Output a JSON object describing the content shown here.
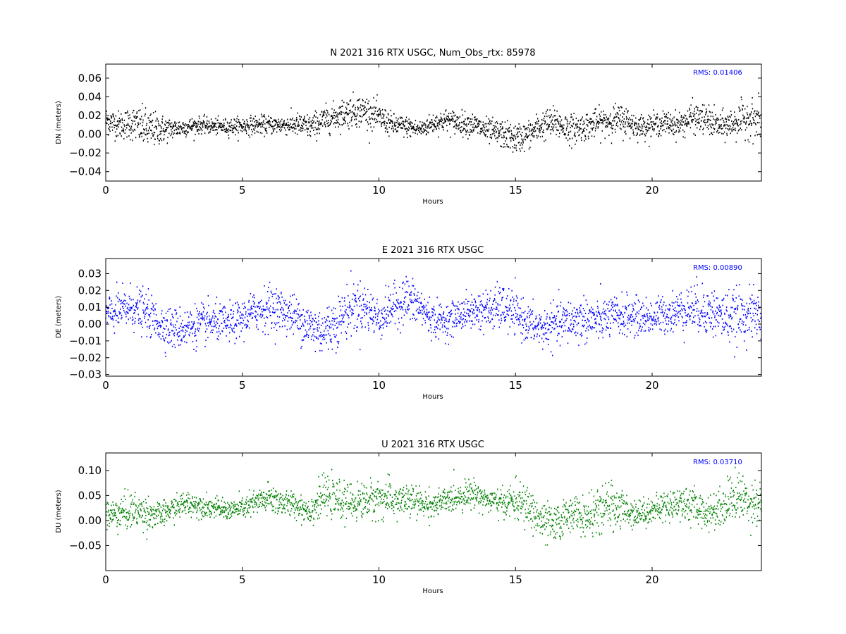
{
  "chart_data": [
    {
      "type": "scatter",
      "title": "N 2021 316 RTX  USGC, Num_Obs_rtx: 85978",
      "xlabel": "Hours",
      "ylabel": "DN (meters)",
      "xlim": [
        0,
        24
      ],
      "ylim": [
        -0.05,
        0.075
      ],
      "xticks": [
        0,
        5,
        10,
        15,
        20
      ],
      "yticks": [
        -0.04,
        -0.02,
        0.0,
        0.02,
        0.04,
        0.06
      ],
      "ytick_labels": [
        "−0.04",
        "−0.02",
        "0.00",
        "0.02",
        "0.04",
        "0.06"
      ],
      "annotation": "RMS:  0.01406",
      "annotation_color": "#0000ff",
      "color": "#000000",
      "grid": false,
      "series": [
        {
          "x": [
            0,
            0.5,
            1,
            1.5,
            2,
            2.5,
            3,
            3.5,
            4,
            4.5,
            5,
            5.5,
            6,
            6.5,
            7,
            7.5,
            8,
            8.5,
            9,
            9.5,
            10,
            10.5,
            11,
            11.5,
            12,
            12.5,
            13,
            13.5,
            14,
            14.5,
            15,
            15.5,
            16,
            16.5,
            17,
            17.5,
            18,
            18.5,
            19,
            19.5,
            20,
            20.5,
            21,
            21.5,
            22,
            22.5,
            23,
            23.5,
            24
          ],
          "y": [
            0.015,
            0.01,
            0.012,
            0.005,
            0.005,
            0.006,
            0.008,
            0.01,
            0.008,
            0.008,
            0.009,
            0.01,
            0.01,
            0.01,
            0.01,
            0.008,
            0.015,
            0.02,
            0.025,
            0.025,
            0.018,
            0.01,
            0.008,
            0.005,
            0.012,
            0.015,
            0.012,
            0.01,
            0.003,
            0.0,
            -0.005,
            0.0,
            0.01,
            0.012,
            0.005,
            0.008,
            0.012,
            0.015,
            0.015,
            0.008,
            0.01,
            0.012,
            0.01,
            0.018,
            0.015,
            0.008,
            0.012,
            0.018,
            0.012
          ],
          "spread": [
            0.012,
            0.012,
            0.015,
            0.018,
            0.013,
            0.009,
            0.008,
            0.007,
            0.007,
            0.007,
            0.008,
            0.008,
            0.008,
            0.008,
            0.01,
            0.011,
            0.012,
            0.012,
            0.014,
            0.014,
            0.012,
            0.01,
            0.009,
            0.008,
            0.009,
            0.01,
            0.01,
            0.01,
            0.011,
            0.012,
            0.013,
            0.012,
            0.013,
            0.014,
            0.013,
            0.012,
            0.012,
            0.013,
            0.014,
            0.01,
            0.01,
            0.01,
            0.011,
            0.013,
            0.013,
            0.012,
            0.014,
            0.016,
            0.018
          ]
        }
      ]
    },
    {
      "type": "scatter",
      "title": "E 2021 316 RTX  USGC",
      "xlabel": "Hours",
      "ylabel": "DE (meters)",
      "xlim": [
        0,
        24
      ],
      "ylim": [
        -0.031,
        0.039
      ],
      "xticks": [
        0,
        5,
        10,
        15,
        20
      ],
      "yticks": [
        -0.03,
        -0.02,
        -0.01,
        0.0,
        0.01,
        0.02,
        0.03
      ],
      "ytick_labels": [
        "−0.03",
        "−0.02",
        "−0.01",
        "0.00",
        "0.01",
        "0.02",
        "0.03"
      ],
      "annotation": "RMS:  0.00890",
      "annotation_color": "#0000ff",
      "color": "#0000ff",
      "grid": false,
      "series": [
        {
          "x": [
            0,
            0.5,
            1,
            1.5,
            2,
            2.5,
            3,
            3.5,
            4,
            4.5,
            5,
            5.5,
            6,
            6.5,
            7,
            7.5,
            8,
            8.5,
            9,
            9.5,
            10,
            10.5,
            11,
            11.5,
            12,
            12.5,
            13,
            13.5,
            14,
            14.5,
            15,
            15.5,
            16,
            16.5,
            17,
            17.5,
            18,
            18.5,
            19,
            19.5,
            20,
            20.5,
            21,
            21.5,
            22,
            22.5,
            23,
            23.5,
            24
          ],
          "y": [
            0.005,
            0.008,
            0.01,
            0.006,
            0.0,
            -0.003,
            -0.002,
            0.0,
            0.001,
            0.0,
            0.003,
            0.008,
            0.01,
            0.008,
            0.004,
            -0.002,
            -0.004,
            0.002,
            0.01,
            0.01,
            0.003,
            0.01,
            0.015,
            0.01,
            0.002,
            0.002,
            0.006,
            0.008,
            0.008,
            0.01,
            0.006,
            0.0,
            -0.003,
            0.0,
            0.002,
            0.003,
            0.002,
            0.004,
            0.005,
            0.004,
            0.004,
            0.006,
            0.008,
            0.01,
            0.008,
            0.005,
            0.004,
            0.006,
            0.005
          ],
          "spread": [
            0.009,
            0.01,
            0.011,
            0.01,
            0.01,
            0.01,
            0.01,
            0.01,
            0.009,
            0.009,
            0.009,
            0.01,
            0.011,
            0.01,
            0.01,
            0.012,
            0.012,
            0.012,
            0.013,
            0.012,
            0.01,
            0.01,
            0.012,
            0.01,
            0.009,
            0.008,
            0.008,
            0.009,
            0.01,
            0.011,
            0.01,
            0.009,
            0.01,
            0.01,
            0.011,
            0.011,
            0.01,
            0.01,
            0.01,
            0.009,
            0.009,
            0.009,
            0.01,
            0.012,
            0.012,
            0.012,
            0.013,
            0.012,
            0.012
          ]
        }
      ]
    },
    {
      "type": "scatter",
      "title": "U 2021 316 RTX  USGC",
      "xlabel": "Hours",
      "ylabel": "DU (meters)",
      "xlim": [
        0,
        24
      ],
      "ylim": [
        -0.1,
        0.135
      ],
      "xticks": [
        0,
        5,
        10,
        15,
        20
      ],
      "yticks": [
        -0.05,
        0.0,
        0.05,
        0.1
      ],
      "ytick_labels": [
        "−0.05",
        "0.00",
        "0.05",
        "0.10"
      ],
      "annotation": "RMS:  0.03710",
      "annotation_color": "#0000ff",
      "color": "#008000",
      "grid": false,
      "series": [
        {
          "x": [
            0,
            0.5,
            1,
            1.5,
            2,
            2.5,
            3,
            3.5,
            4,
            4.5,
            5,
            5.5,
            6,
            6.5,
            7,
            7.5,
            8,
            8.5,
            9,
            9.5,
            10,
            10.5,
            11,
            11.5,
            12,
            12.5,
            13,
            13.5,
            14,
            14.5,
            15,
            15.5,
            16,
            16.5,
            17,
            17.5,
            18,
            18.5,
            19,
            19.5,
            20,
            20.5,
            21,
            21.5,
            22,
            22.5,
            23,
            23.5,
            24
          ],
          "y": [
            0.01,
            0.015,
            0.02,
            0.015,
            0.01,
            0.025,
            0.035,
            0.03,
            0.025,
            0.02,
            0.025,
            0.035,
            0.045,
            0.035,
            0.03,
            0.02,
            0.05,
            0.04,
            0.035,
            0.04,
            0.045,
            0.04,
            0.04,
            0.035,
            0.03,
            0.04,
            0.05,
            0.055,
            0.04,
            0.035,
            0.04,
            0.025,
            -0.005,
            -0.01,
            0.02,
            0.005,
            0.015,
            0.03,
            0.02,
            0.015,
            0.02,
            0.03,
            0.035,
            0.03,
            0.015,
            0.025,
            0.05,
            0.04,
            0.035
          ],
          "spread": [
            0.025,
            0.03,
            0.03,
            0.028,
            0.02,
            0.02,
            0.02,
            0.018,
            0.016,
            0.016,
            0.018,
            0.022,
            0.025,
            0.022,
            0.02,
            0.025,
            0.03,
            0.03,
            0.03,
            0.03,
            0.032,
            0.03,
            0.028,
            0.025,
            0.022,
            0.022,
            0.022,
            0.022,
            0.02,
            0.022,
            0.03,
            0.035,
            0.035,
            0.03,
            0.03,
            0.03,
            0.035,
            0.04,
            0.03,
            0.022,
            0.022,
            0.025,
            0.028,
            0.028,
            0.025,
            0.035,
            0.04,
            0.04,
            0.035
          ]
        }
      ]
    }
  ]
}
